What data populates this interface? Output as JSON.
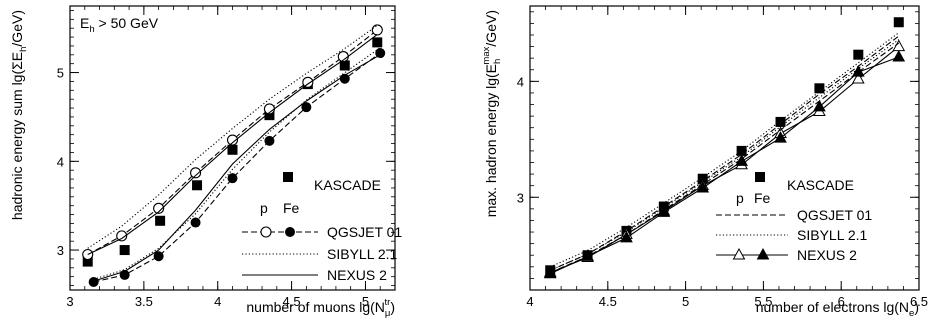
{
  "chart_data": [
    {
      "type": "line",
      "panel": "left",
      "annotation": {
        "base": "E",
        "sub": "h",
        "rest": " > 50 GeV"
      },
      "xlabel": {
        "base": "number of muons lg(N",
        "sub": "μ",
        "sup": "tr",
        "close": ")"
      },
      "ylabel": {
        "base": "hadronic energy sum lg(ΣE",
        "sub": "h",
        "close": "/GeV)"
      },
      "xlim": [
        3.0,
        5.2
      ],
      "ylim": [
        2.55,
        5.75
      ],
      "x_ticks": [
        3,
        3.5,
        4,
        4.5,
        5
      ],
      "x_tick_labels": [
        "3",
        "3.5",
        "4",
        "4.5",
        "5"
      ],
      "y_ticks": [
        3,
        4,
        5
      ],
      "y_tick_labels": [
        "3",
        "4",
        "5"
      ],
      "legend": {
        "kascade": "KASCADE",
        "p_label": "p",
        "fe_label": "Fe",
        "models": [
          "QGSJET 01",
          "SIBYLL 2.1",
          "NEXUS 2"
        ]
      },
      "series": [
        {
          "name": "KASCADE",
          "marker": "filled-square",
          "x": [
            3.12,
            3.37,
            3.61,
            3.86,
            4.1,
            4.35,
            4.61,
            4.86,
            5.08
          ],
          "y": [
            2.87,
            3.0,
            3.33,
            3.73,
            4.13,
            4.52,
            4.87,
            5.08,
            5.34
          ]
        },
        {
          "model": "QGSJET 01",
          "primary": "p",
          "style": "dashed",
          "marker": "open-circle",
          "x": [
            3.12,
            3.35,
            3.6,
            3.85,
            4.1,
            4.35,
            4.61,
            4.85,
            5.08
          ],
          "y": [
            2.95,
            3.16,
            3.47,
            3.87,
            4.24,
            4.59,
            4.89,
            5.18,
            5.48
          ]
        },
        {
          "model": "QGSJET 01",
          "primary": "Fe",
          "style": "dashed",
          "marker": "filled-circle",
          "x": [
            3.16,
            3.37,
            3.6,
            3.85,
            4.1,
            4.35,
            4.6,
            4.86,
            5.1
          ],
          "y": [
            2.64,
            2.72,
            2.93,
            3.31,
            3.81,
            4.23,
            4.61,
            4.93,
            5.22
          ]
        },
        {
          "model": "SIBYLL 2.1",
          "primary": "p",
          "style": "dotted",
          "x": [
            3.12,
            3.35,
            3.6,
            3.85,
            4.1,
            4.35,
            4.6,
            4.85,
            5.08
          ],
          "y": [
            3.02,
            3.27,
            3.62,
            4.02,
            4.37,
            4.7,
            4.99,
            5.26,
            5.53
          ]
        },
        {
          "model": "SIBYLL 2.1",
          "primary": "Fe",
          "style": "dotted",
          "x": [
            3.16,
            3.37,
            3.6,
            3.85,
            4.1,
            4.35,
            4.6,
            4.86,
            5.1
          ],
          "y": [
            2.67,
            2.78,
            3.02,
            3.41,
            3.91,
            4.33,
            4.69,
            5.0,
            5.28
          ]
        },
        {
          "model": "NEXUS 2",
          "primary": "p",
          "style": "solid",
          "x": [
            3.12,
            3.35,
            3.6,
            3.85,
            4.1,
            4.35,
            4.6,
            4.85,
            5.08
          ],
          "y": [
            2.95,
            3.13,
            3.43,
            3.84,
            4.21,
            4.55,
            4.86,
            5.14,
            5.43
          ]
        },
        {
          "model": "NEXUS 2",
          "primary": "Fe",
          "style": "solid",
          "x": [
            3.16,
            3.37,
            3.6,
            3.85,
            4.1,
            4.35,
            4.6,
            4.86,
            5.1
          ],
          "y": [
            2.65,
            2.76,
            3.0,
            3.45,
            3.97,
            4.36,
            4.68,
            4.97,
            5.2
          ]
        }
      ]
    },
    {
      "type": "line",
      "panel": "right",
      "xlabel": {
        "base": "number of electrons lg(N",
        "sub": "e",
        "close": ")"
      },
      "ylabel": {
        "base": "max. hadron energy lg(E",
        "sub": "h",
        "sup": "max",
        "close": "/GeV)"
      },
      "xlim": [
        4.0,
        6.5
      ],
      "ylim": [
        2.2,
        4.65
      ],
      "x_ticks": [
        4,
        4.5,
        5,
        5.5,
        6,
        6.5
      ],
      "x_tick_labels": [
        "4",
        "4.5",
        "5",
        "5.5",
        "6",
        "6.5"
      ],
      "y_ticks": [
        3,
        4
      ],
      "y_tick_labels": [
        "3",
        "4"
      ],
      "legend": {
        "kascade": "KASCADE",
        "p_label": "p",
        "fe_label": "Fe",
        "models": [
          "QGSJET 01",
          "SIBYLL 2.1",
          "NEXUS 2"
        ]
      },
      "series": [
        {
          "name": "KASCADE",
          "marker": "filled-square",
          "x": [
            4.13,
            4.37,
            4.62,
            4.86,
            5.11,
            5.36,
            5.61,
            5.86,
            6.11,
            6.37
          ],
          "y": [
            2.37,
            2.5,
            2.71,
            2.92,
            3.16,
            3.4,
            3.65,
            3.94,
            4.23,
            4.51
          ]
        },
        {
          "model": "NEXUS 2",
          "primary": "p",
          "style": "solid",
          "marker": "open-triangle",
          "x": [
            4.13,
            4.37,
            4.62,
            4.86,
            5.11,
            5.36,
            5.61,
            5.86,
            6.11,
            6.37
          ],
          "y": [
            2.35,
            2.48,
            2.68,
            2.88,
            3.1,
            3.28,
            3.55,
            3.74,
            4.02,
            4.3
          ]
        },
        {
          "model": "NEXUS 2",
          "primary": "Fe",
          "style": "solid",
          "marker": "filled-triangle",
          "x": [
            4.13,
            4.37,
            4.62,
            4.86,
            5.11,
            5.36,
            5.61,
            5.86,
            6.11,
            6.37
          ],
          "y": [
            2.34,
            2.49,
            2.65,
            2.87,
            3.08,
            3.31,
            3.51,
            3.78,
            4.08,
            4.21
          ]
        },
        {
          "model": "QGSJET 01",
          "primary": "p",
          "style": "dashed",
          "x": [
            4.13,
            4.37,
            4.62,
            4.86,
            5.11,
            5.36,
            5.61,
            5.86,
            6.11,
            6.37
          ],
          "y": [
            2.37,
            2.51,
            2.71,
            2.92,
            3.14,
            3.37,
            3.63,
            3.89,
            4.13,
            4.39
          ]
        },
        {
          "model": "QGSJET 01",
          "primary": "Fe",
          "style": "dashed",
          "x": [
            4.13,
            4.37,
            4.62,
            4.86,
            5.11,
            5.36,
            5.61,
            5.86,
            6.11,
            6.37
          ],
          "y": [
            2.35,
            2.49,
            2.68,
            2.89,
            3.11,
            3.33,
            3.58,
            3.83,
            4.08,
            4.33
          ]
        },
        {
          "model": "SIBYLL 2.1",
          "primary": "p",
          "style": "dotted",
          "x": [
            4.13,
            4.37,
            4.62,
            4.86,
            5.11,
            5.36,
            5.61,
            5.86,
            6.11,
            6.37
          ],
          "y": [
            2.4,
            2.54,
            2.74,
            2.95,
            3.17,
            3.4,
            3.66,
            3.91,
            4.16,
            4.42
          ]
        },
        {
          "model": "SIBYLL 2.1",
          "primary": "Fe",
          "style": "dotted",
          "x": [
            4.13,
            4.37,
            4.62,
            4.86,
            5.11,
            5.36,
            5.61,
            5.86,
            6.11,
            6.37
          ],
          "y": [
            2.37,
            2.51,
            2.7,
            2.91,
            3.13,
            3.35,
            3.61,
            3.86,
            4.11,
            4.36
          ]
        }
      ]
    }
  ]
}
